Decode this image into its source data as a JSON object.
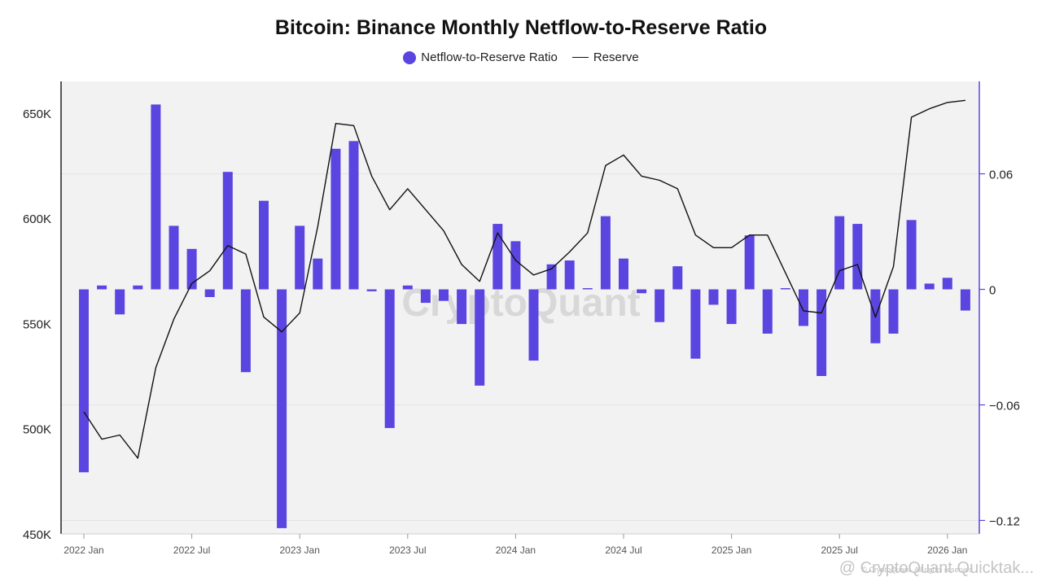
{
  "chart_data": {
    "type": "bar",
    "title": "Bitcoin: Binance Monthly Netflow-to-Reserve Ratio",
    "legend": [
      {
        "label": "Netflow-to-Reserve Ratio",
        "color": "#5a45e0",
        "kind": "bar"
      },
      {
        "label": "Reserve",
        "color": "#111111",
        "kind": "line"
      }
    ],
    "x_tick_labels": [
      "2022 Jan",
      "2022 Jul",
      "2023 Jan",
      "2023 Jul",
      "2024 Jan",
      "2024 Jul",
      "2025 Jan",
      "2025 Jul",
      "2026 Jan"
    ],
    "months": [
      "2022-01",
      "2022-02",
      "2022-03",
      "2022-04",
      "2022-05",
      "2022-06",
      "2022-07",
      "2022-08",
      "2022-09",
      "2022-10",
      "2022-11",
      "2022-12",
      "2023-01",
      "2023-02",
      "2023-03",
      "2023-04",
      "2023-05",
      "2023-06",
      "2023-07",
      "2023-08",
      "2023-09",
      "2023-10",
      "2023-11",
      "2023-12",
      "2024-01",
      "2024-02",
      "2024-03",
      "2024-04",
      "2024-05",
      "2024-06",
      "2024-07",
      "2024-08",
      "2024-09",
      "2024-10",
      "2024-11",
      "2024-12",
      "2025-01",
      "2025-02",
      "2025-03",
      "2025-04",
      "2025-05",
      "2025-06",
      "2025-07",
      "2025-08",
      "2025-09",
      "2025-10",
      "2025-11",
      "2025-12",
      "2026-01",
      "2026-02"
    ],
    "series": [
      {
        "name": "Netflow-to-Reserve Ratio",
        "axis": "right",
        "color": "#5a45e0",
        "values": [
          -0.095,
          0.002,
          -0.013,
          0.002,
          0.096,
          0.033,
          0.021,
          -0.004,
          0.061,
          -0.043,
          0.046,
          -0.124,
          0.033,
          0.016,
          0.073,
          0.077,
          -0.001,
          -0.072,
          0.002,
          -0.007,
          -0.006,
          -0.018,
          -0.05,
          0.034,
          0.025,
          -0.037,
          0.013,
          0.015,
          0,
          0.038,
          0.016,
          -0.002,
          -0.017,
          0.012,
          -0.036,
          -0.008,
          -0.018,
          0.028,
          -0.023,
          0,
          -0.019,
          -0.045,
          0.038,
          0.034,
          -0.028,
          -0.023,
          0.036,
          0.003,
          0.006,
          -0.011
        ]
      },
      {
        "name": "Reserve",
        "axis": "left",
        "color": "#111111",
        "values": [
          508000,
          495000,
          497000,
          486000,
          529000,
          552000,
          569000,
          575000,
          587000,
          583000,
          553000,
          546000,
          555000,
          596000,
          645000,
          644000,
          620000,
          604000,
          614000,
          604000,
          594000,
          578000,
          570000,
          593000,
          580000,
          573000,
          576000,
          584000,
          593000,
          625000,
          630000,
          620000,
          618000,
          614000,
          592000,
          586000,
          586000,
          592000,
          592000,
          574000,
          556000,
          555000,
          575000,
          578000,
          553000,
          577000,
          648000,
          652000,
          655000,
          656000
        ]
      }
    ],
    "y_left": {
      "label": "",
      "lim": [
        450000,
        665000
      ],
      "ticks": [
        450000,
        500000,
        550000,
        600000,
        650000
      ],
      "tick_labels": [
        "450K",
        "500K",
        "550K",
        "600K",
        "650K"
      ]
    },
    "y_right": {
      "label": "",
      "lim": [
        -0.127,
        0.108
      ],
      "ticks": [
        -0.12,
        -0.06,
        0,
        0.06
      ],
      "tick_labels": [
        "−0.12",
        "−0.06",
        "0",
        "0.06"
      ]
    },
    "grid": true
  },
  "watermark": {
    "center": "CryptoQuant",
    "footer": "@ CryptoQuant Quicktak...",
    "copyright": "© CryptoQuant. All rights reserved"
  }
}
